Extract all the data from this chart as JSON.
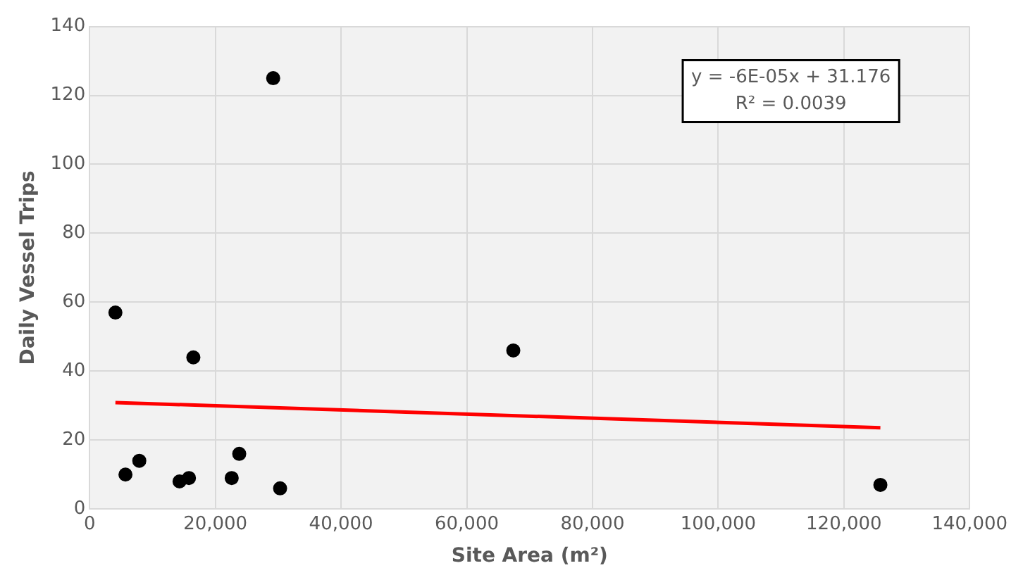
{
  "chart_data": {
    "type": "scatter",
    "xlabel": "Site Area (m²)",
    "ylabel": "Daily Vessel Trips",
    "annotations": [
      "y = -6E-05x + 31.176",
      "R² = 0.0039"
    ],
    "series": [
      {
        "color": "#000000",
        "marker": "circle",
        "x": [
          4100,
          5700,
          7900,
          14300,
          15800,
          16500,
          22600,
          23800,
          29200,
          30300,
          67400,
          125800
        ],
        "values": [
          57,
          10,
          14,
          8,
          9,
          44,
          9,
          16,
          125,
          6,
          46,
          7
        ]
      },
      {
        "type": "line",
        "color": "#ff0000",
        "x": [
          4100,
          125800
        ],
        "values": [
          30.9,
          23.6
        ]
      }
    ],
    "xlim": [
      0,
      140000
    ],
    "xticks": [
      0,
      {
        "value": 20000,
        "label": "20,000"
      },
      {
        "value": 40000,
        "label": "40,000"
      },
      {
        "value": 60000,
        "label": "60,000"
      },
      {
        "value": 80000,
        "label": "80,000"
      },
      {
        "value": 100000,
        "label": "100,000"
      },
      {
        "value": 120000,
        "label": "120,000"
      },
      {
        "value": 140000,
        "label": "140,000"
      }
    ],
    "ylim": [
      0,
      140
    ],
    "yticks": [
      0,
      20,
      40,
      60,
      80,
      100,
      120,
      140
    ],
    "grid": true,
    "legend": false
  }
}
